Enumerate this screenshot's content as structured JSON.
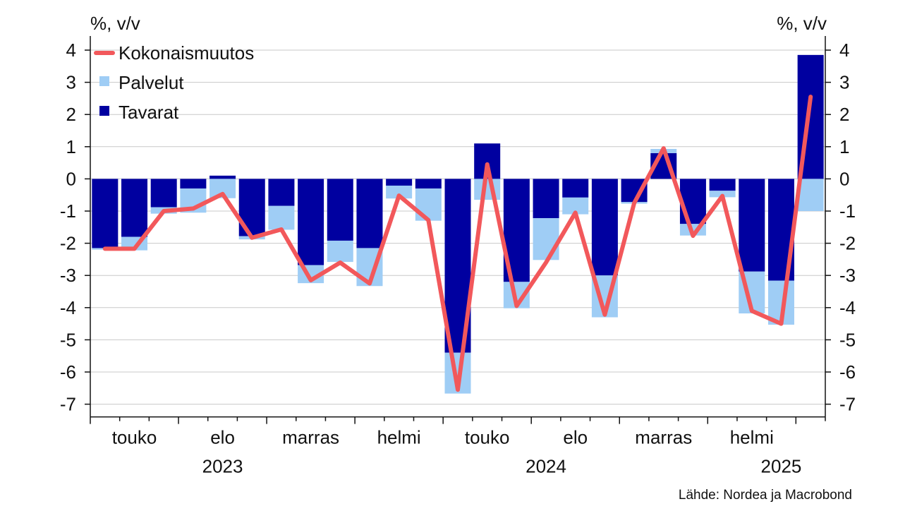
{
  "chart_data": {
    "type": "bar",
    "stacked": true,
    "ylabel_left": "%, v/v",
    "ylabel_right": "%, v/v",
    "ylim": [
      -7,
      4
    ],
    "yticks": [
      4,
      3,
      2,
      1,
      0,
      -1,
      -2,
      -3,
      -4,
      -5,
      -6,
      -7
    ],
    "grid": true,
    "legend_position": "top-left",
    "x_labels": [
      {
        "index": 1,
        "label": "touko"
      },
      {
        "index": 4,
        "label": "elo"
      },
      {
        "index": 7,
        "label": "marras"
      },
      {
        "index": 10,
        "label": "helmi"
      },
      {
        "index": 13,
        "label": "touko"
      },
      {
        "index": 16,
        "label": "elo"
      },
      {
        "index": 19,
        "label": "marras"
      },
      {
        "index": 22,
        "label": "helmi"
      }
    ],
    "year_labels": [
      {
        "index": 4,
        "label": "2023"
      },
      {
        "index": 15,
        "label": "2024"
      },
      {
        "index": 23,
        "label": "2025"
      }
    ],
    "series": [
      {
        "name": "Tavarat",
        "kind": "bar",
        "color": "#0000a0",
        "values": [
          -2.15,
          -1.8,
          -0.88,
          -0.3,
          0.1,
          -1.78,
          -0.84,
          -2.68,
          -1.92,
          -2.15,
          -0.21,
          -0.3,
          -5.4,
          1.1,
          -3.2,
          -1.22,
          -0.58,
          -3.0,
          -0.72,
          0.8,
          -1.4,
          -0.37,
          -2.88,
          -3.16,
          3.85
        ]
      },
      {
        "name": "Palvelut",
        "kind": "bar",
        "color": "#9fcdf5",
        "values": [
          -0.05,
          -0.42,
          -0.2,
          -0.75,
          -0.6,
          -0.1,
          -0.74,
          -0.56,
          -0.66,
          -1.18,
          -0.4,
          -1.0,
          -1.27,
          -0.65,
          -0.82,
          -1.3,
          -0.52,
          -1.3,
          -0.05,
          0.13,
          -0.36,
          -0.2,
          -1.3,
          -1.37,
          -1.0
        ]
      },
      {
        "name": "Kokonaismuutos",
        "kind": "line",
        "color": "#f2585b",
        "values": [
          -2.17,
          -2.17,
          -1.0,
          -0.92,
          -0.47,
          -1.83,
          -1.57,
          -3.15,
          -2.6,
          -3.25,
          -0.52,
          -1.28,
          -6.55,
          0.45,
          -3.95,
          -2.6,
          -1.05,
          -4.22,
          -0.75,
          0.95,
          -1.77,
          -0.53,
          -4.1,
          -4.5,
          2.55
        ]
      }
    ],
    "source": "Lähde: Nordea ja Macrobond"
  }
}
